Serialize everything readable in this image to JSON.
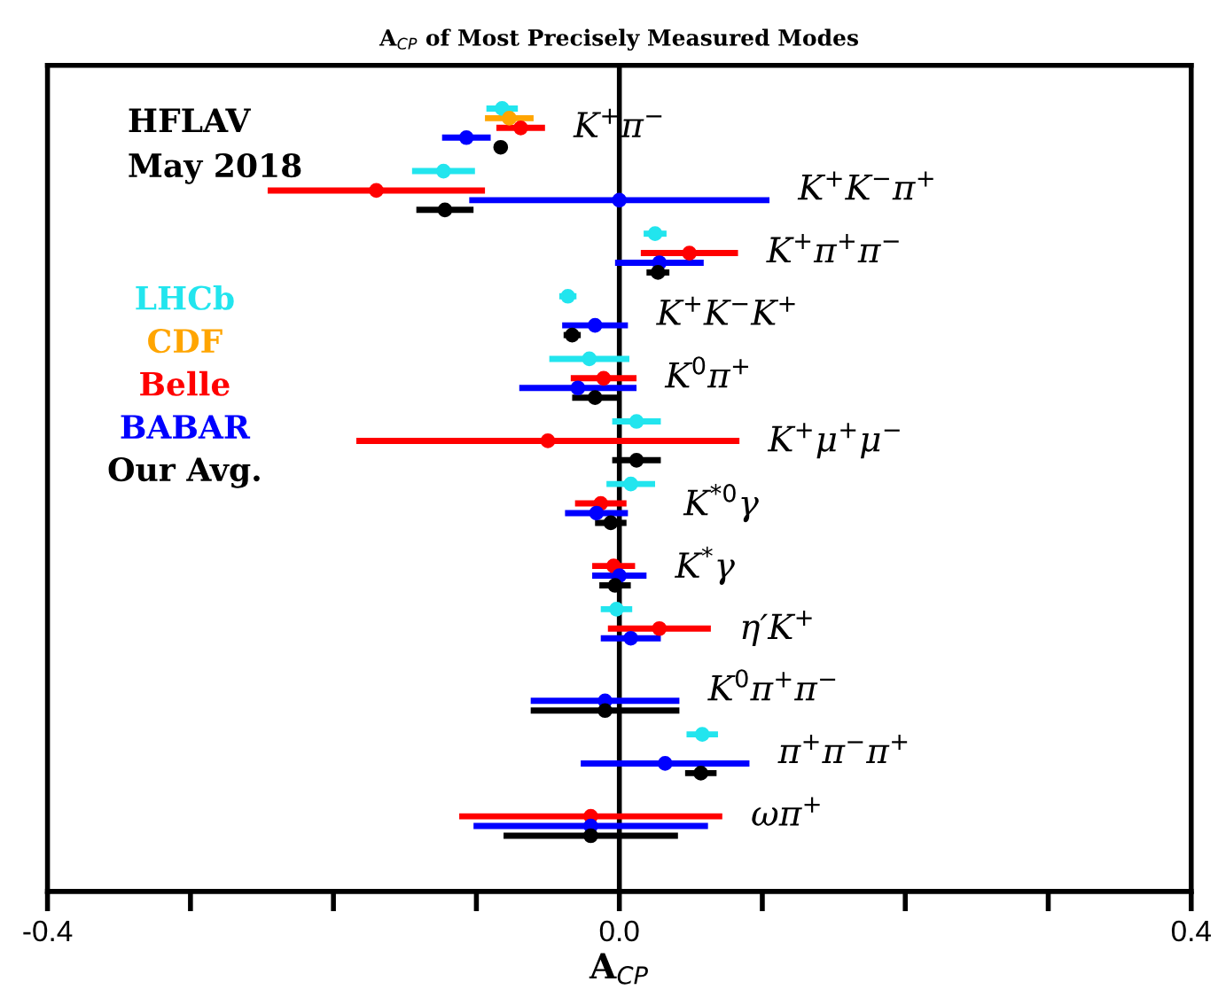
{
  "chart_data": {
    "type": "scatter",
    "orientation": "horizontal",
    "title": "A$_{CP}$ of Most Precisely Measured Modes",
    "xlabel": "A$_{CP}$",
    "categories": [
      "K$^{+}$π$^{−}$",
      "K$^{+}$K$^{−}$π$^{+}$",
      "K$^{+}$π$^{+}$π$^{−}$",
      "K$^{+}$K$^{−}$K$^{+}$",
      "K$^{0}$π$^{+}$",
      "K$^{+}$μ$^{+}$μ$^{−}$",
      "K$^{*0}$γ",
      "K$^{*}$γ",
      "η′K$^{+}$",
      "K$^{0}$π$^{+}$π$^{−}$",
      "π$^{+}$π$^{−}$π$^{+}$",
      "ωπ$^{+}$"
    ],
    "series": [
      {
        "name": "LHCb",
        "color": "#22e5ee",
        "values": [
          -0.082,
          -0.123,
          0.025,
          -0.036,
          -0.021,
          0.012,
          0.008,
          null,
          -0.002,
          null,
          0.058,
          null
        ],
        "errors": [
          0.011,
          0.022,
          0.008,
          0.006,
          0.028,
          0.017,
          0.017,
          null,
          0.011,
          null,
          0.011,
          null
        ]
      },
      {
        "name": "CDF",
        "color": "#ffa500",
        "values": [
          -0.077,
          null,
          null,
          null,
          null,
          null,
          null,
          null,
          null,
          null,
          null,
          null
        ],
        "errors": [
          0.017,
          null,
          null,
          null,
          null,
          null,
          null,
          null,
          null,
          null,
          null,
          null
        ]
      },
      {
        "name": "Belle",
        "color": "#ff0000",
        "values": [
          -0.069,
          -0.17,
          0.049,
          null,
          -0.011,
          -0.05,
          -0.013,
          -0.004,
          0.028,
          null,
          null,
          -0.02
        ],
        "errors": [
          0.017,
          0.076,
          0.034,
          null,
          0.023,
          0.134,
          0.018,
          0.015,
          0.036,
          null,
          null,
          0.092
        ]
      },
      {
        "name": "BABAR",
        "color": "#0000ff",
        "values": [
          -0.107,
          0.0,
          0.028,
          -0.017,
          -0.029,
          null,
          -0.016,
          0.0,
          0.008,
          -0.01,
          0.032,
          -0.02
        ],
        "errors": [
          0.017,
          0.105,
          0.031,
          0.023,
          0.041,
          null,
          0.022,
          0.019,
          0.021,
          0.052,
          0.059,
          0.082
        ]
      },
      {
        "name": "Our Avg.",
        "color": "#000000",
        "values": [
          -0.083,
          -0.122,
          0.027,
          -0.033,
          -0.017,
          0.012,
          -0.006,
          -0.003,
          null,
          -0.01,
          0.057,
          -0.02
        ],
        "errors": [
          0.004,
          0.02,
          0.008,
          0.006,
          0.016,
          0.017,
          0.011,
          0.011,
          null,
          0.052,
          0.011,
          0.061
        ]
      }
    ],
    "xlim": [
      -0.4,
      0.4
    ],
    "xticks": [
      -0.4,
      {
        "value": -0.3,
        "label": null
      },
      {
        "value": -0.2,
        "label": null
      },
      {
        "value": -0.1,
        "label": null
      },
      {
        "value": 0.0,
        "label": "0.0"
      },
      {
        "value": 0.1,
        "label": null
      },
      {
        "value": 0.2,
        "label": null
      },
      {
        "value": 0.3,
        "label": null
      },
      0.4
    ],
    "ref_lines": [
      {
        "axis": "x",
        "value": 0,
        "color": "#000000"
      }
    ],
    "annotations": [
      "HFLAV",
      "May 2018"
    ],
    "legend": "left",
    "marker": "circle",
    "grid": false,
    "tick_labels": "x"
  }
}
